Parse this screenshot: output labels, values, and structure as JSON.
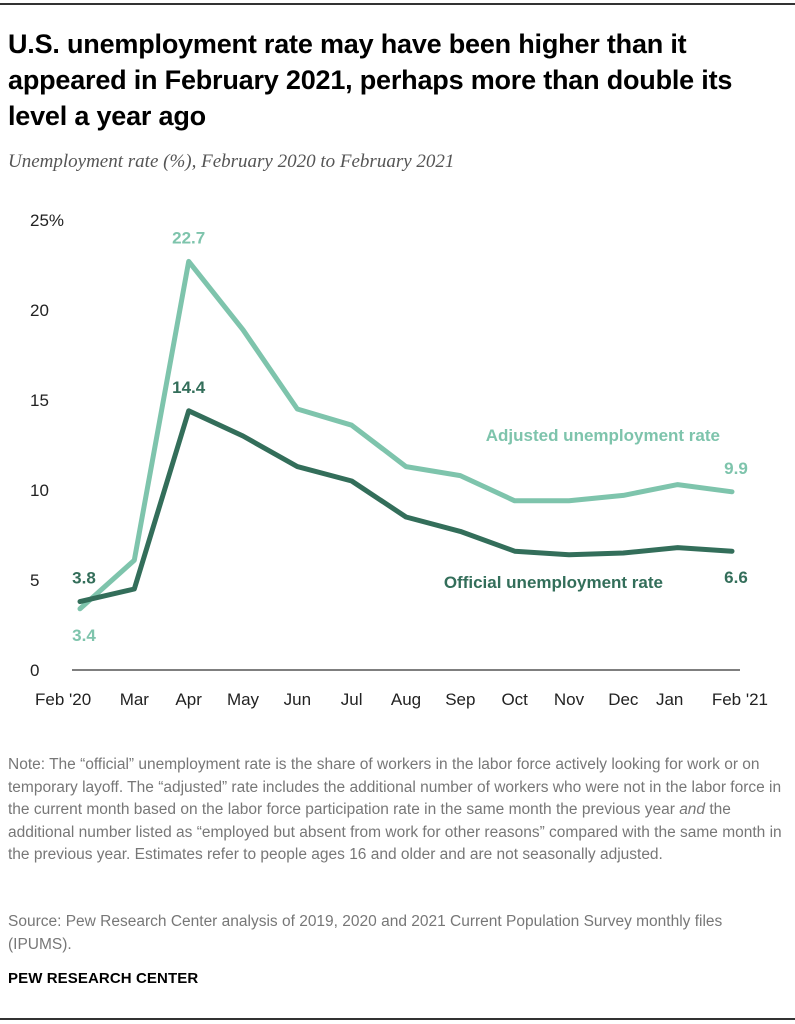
{
  "title": "U.S. unemployment rate may have been higher than it appeared in February 2021, perhaps more than double its level a year ago",
  "subtitle": "Unemployment rate (%), February 2020 to February 2021",
  "note": "Note: The “official” unemployment rate is the share of workers in the labor force actively looking for work or on temporary layoff. The “adjusted” rate includes the additional number of workers who were not in the labor force in the current month based on the labor force participation rate in the same month the previous year and the additional number listed as “employed but absent from work for other reasons” compared with the same month in the previous year. Estimates refer to people ages 16 and older and are not seasonally adjusted.",
  "source": "Source: Pew Research Center analysis of 2019, 2020 and 2021 Current Population Survey monthly files (IPUMS).",
  "brand": "PEW RESEARCH CENTER",
  "colors": {
    "adjusted": "#7ec4ac",
    "official": "#336e5a",
    "axis": "#333333"
  },
  "chart_data": {
    "type": "line",
    "title": "Unemployment rate (%), February 2020 to February 2021",
    "xlabel": "",
    "ylabel": "Unemployment rate (%)",
    "ylim": [
      0,
      25
    ],
    "yticks": [
      0,
      5,
      10,
      15,
      20,
      25
    ],
    "ytick_labels": [
      "0",
      "5",
      "10",
      "15",
      "20",
      "25%"
    ],
    "categories": [
      "Feb '20",
      "Mar",
      "Apr",
      "May",
      "Jun",
      "Jul",
      "Aug",
      "Sep",
      "Oct",
      "Nov",
      "Dec",
      "Jan",
      "Feb '21"
    ],
    "grid": false,
    "series": [
      {
        "name": "Adjusted unemployment rate",
        "values": [
          3.4,
          6.1,
          22.7,
          18.9,
          14.5,
          13.6,
          11.3,
          10.8,
          9.4,
          9.4,
          9.7,
          10.3,
          9.9
        ]
      },
      {
        "name": "Official unemployment rate",
        "values": [
          3.8,
          4.5,
          14.4,
          13.0,
          11.3,
          10.5,
          8.5,
          7.7,
          6.6,
          6.4,
          6.5,
          6.8,
          6.6
        ]
      }
    ],
    "annotations": [
      {
        "series": "Adjusted unemployment rate",
        "index": 0,
        "text": "3.4",
        "position": "below"
      },
      {
        "series": "Adjusted unemployment rate",
        "index": 2,
        "text": "22.7",
        "position": "above"
      },
      {
        "series": "Adjusted unemployment rate",
        "index": 12,
        "text": "9.9",
        "position": "above"
      },
      {
        "series": "Official unemployment rate",
        "index": 0,
        "text": "3.8",
        "position": "above"
      },
      {
        "series": "Official unemployment rate",
        "index": 2,
        "text": "14.4",
        "position": "above"
      },
      {
        "series": "Official unemployment rate",
        "index": 12,
        "text": "6.6",
        "position": "below"
      }
    ]
  }
}
